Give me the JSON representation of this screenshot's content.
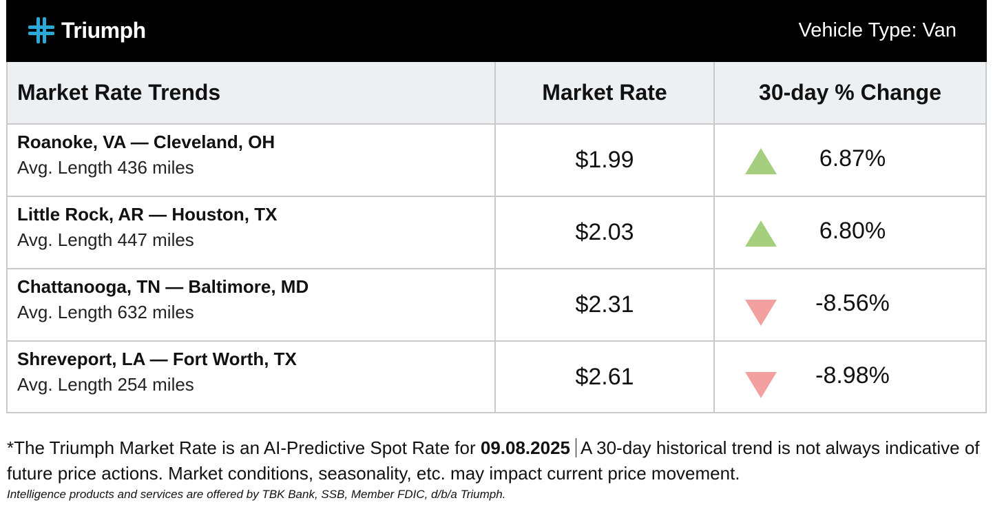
{
  "header": {
    "brand": "Triumph",
    "vehicle_type": "Vehicle Type: Van"
  },
  "table": {
    "columns": [
      "Market Rate Trends",
      "Market Rate",
      "30-day % Change"
    ],
    "rows": [
      {
        "route": "Roanoke, VA — Cleveland, OH",
        "length": "Avg. Length 436 miles",
        "rate": "$1.99",
        "trend": "up",
        "change": "6.87%"
      },
      {
        "route": "Little Rock, AR — Houston, TX",
        "length": "Avg. Length 447 miles",
        "rate": "$2.03",
        "trend": "up",
        "change": "6.80%"
      },
      {
        "route": "Chattanooga, TN — Baltimore, MD",
        "length": "Avg. Length 632 miles",
        "rate": "$2.31",
        "trend": "down",
        "change": "-8.56%"
      },
      {
        "route": "Shreveport, LA — Fort Worth, TX",
        "length": "Avg. Length 254 miles",
        "rate": "$2.61",
        "trend": "down",
        "change": "-8.98%"
      }
    ]
  },
  "footer": {
    "note_prefix": "*The Triumph Market Rate is an AI-Predictive Spot Rate for ",
    "date": "09.08.2025",
    "note_suffix": "A 30-day historical trend is not always indicative of future price actions. Market conditions, seasonality, etc. may impact current price movement.",
    "disclaimer": "Intelligence products and services are offered by TBK Bank, SSB, Member FDIC, d/b/a Triumph."
  },
  "colors": {
    "header_bg": "#000000",
    "logo_accent": "#2aa8d6",
    "up_arrow": "#a5cf7f",
    "down_arrow": "#f3a0a0",
    "table_header_bg": "#edf0f2"
  },
  "icons": {
    "logo": "triumph-cross-icon",
    "up": "triangle-up-icon",
    "down": "triangle-down-icon"
  }
}
